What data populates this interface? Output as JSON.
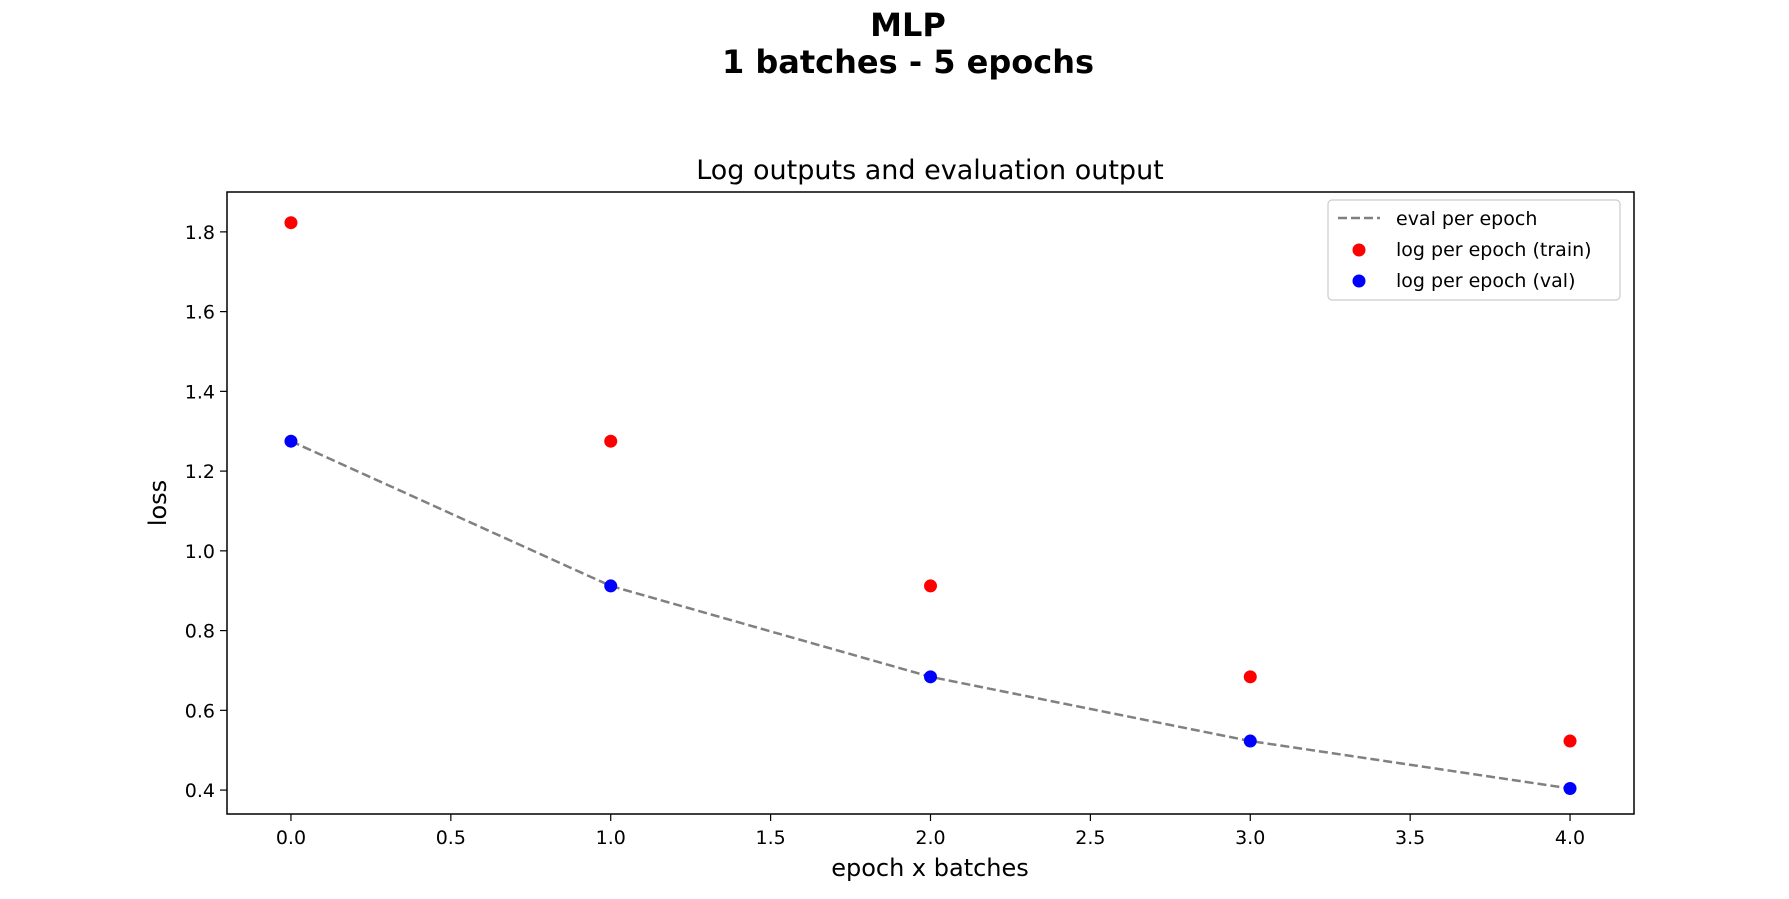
{
  "chart_data": {
    "type": "scatter",
    "suptitle_lines": [
      "MLP",
      "1 batches - 5 epochs"
    ],
    "title": "Log outputs and evaluation output",
    "xlabel": "epoch x batches",
    "ylabel": "loss",
    "xlim": [
      -0.2,
      4.2
    ],
    "ylim": [
      0.34,
      1.9
    ],
    "xticks": [
      0.0,
      0.5,
      1.0,
      1.5,
      2.0,
      2.5,
      3.0,
      3.5,
      4.0
    ],
    "xtick_labels": [
      "0.0",
      "0.5",
      "1.0",
      "1.5",
      "2.0",
      "2.5",
      "3.0",
      "3.5",
      "4.0"
    ],
    "yticks": [
      0.4,
      0.6,
      0.8,
      1.0,
      1.2,
      1.4,
      1.6,
      1.8
    ],
    "ytick_labels": [
      "0.4",
      "0.6",
      "0.8",
      "1.0",
      "1.2",
      "1.4",
      "1.6",
      "1.8"
    ],
    "grid": false,
    "legend_position": "top-right",
    "series": [
      {
        "name": "eval per epoch",
        "kind": "line",
        "style": "dashed",
        "color": "#808080",
        "x": [
          0,
          1,
          2,
          3,
          4
        ],
        "y": [
          1.275,
          0.912,
          0.684,
          0.523,
          0.404
        ]
      },
      {
        "name": "log per epoch (train)",
        "kind": "scatter",
        "color": "#ff0000",
        "x": [
          0,
          1,
          2,
          3,
          4
        ],
        "y": [
          1.823,
          1.275,
          0.912,
          0.684,
          0.523
        ]
      },
      {
        "name": "log per epoch (val)",
        "kind": "scatter",
        "color": "#0000ff",
        "x": [
          0,
          1,
          2,
          3,
          4
        ],
        "y": [
          1.275,
          0.912,
          0.684,
          0.523,
          0.404
        ]
      }
    ]
  }
}
